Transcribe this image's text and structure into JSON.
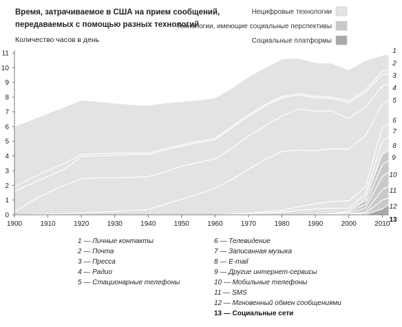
{
  "chart_data": {
    "type": "area",
    "title_lines": [
      "Время, затрачиваемое в США на прием сообщений,",
      "передаваемых с помощью разных технологий"
    ],
    "ylabel": "Количество часов в день",
    "xlabel": "",
    "xlim": [
      1900,
      2012
    ],
    "ylim": [
      0,
      11
    ],
    "x_ticks": [
      "1900",
      "1910",
      "1920",
      "1930",
      "1940",
      "1950",
      "1960",
      "1970",
      "1980",
      "1990",
      "2000",
      "2010"
    ],
    "y_ticks": [
      "0",
      "1",
      "2",
      "3",
      "4",
      "5",
      "6",
      "7",
      "8",
      "9",
      "10",
      "11"
    ],
    "groups": [
      {
        "name": "Нецифровые технологии",
        "color": "#e3e3e3"
      },
      {
        "name": "Технологии, имеющие социальные перспективы",
        "color": "#c9c9c9"
      },
      {
        "name": "Социальные платформы",
        "color": "#a9a9a9"
      }
    ],
    "x": [
      1900,
      1905,
      1910,
      1915,
      1920,
      1925,
      1930,
      1935,
      1940,
      1945,
      1950,
      1955,
      1960,
      1965,
      1970,
      1975,
      1980,
      1985,
      1990,
      1995,
      2000,
      2005,
      2010,
      2012
    ],
    "series": [
      {
        "id": "1",
        "group": 0,
        "label": "1",
        "top": [
          6.0,
          6.45,
          6.9,
          7.35,
          7.8,
          7.7,
          7.6,
          7.5,
          7.45,
          7.6,
          7.7,
          7.8,
          7.95,
          8.6,
          9.4,
          10.0,
          10.6,
          10.65,
          10.35,
          10.3,
          9.85,
          10.5,
          10.85,
          10.9
        ]
      },
      {
        "id": "2",
        "group": 0,
        "label": "2",
        "top": [
          1.9,
          2.5,
          3.0,
          3.5,
          4.1,
          4.15,
          4.2,
          4.2,
          4.2,
          4.5,
          4.75,
          5.0,
          5.2,
          6.0,
          6.8,
          7.5,
          8.05,
          8.25,
          8.05,
          8.0,
          7.75,
          8.5,
          9.75,
          9.85
        ]
      },
      {
        "id": "3",
        "group": 0,
        "label": "3",
        "top": [
          1.6,
          2.1,
          2.6,
          3.1,
          3.95,
          4.0,
          4.05,
          4.1,
          4.1,
          4.4,
          4.65,
          4.9,
          5.1,
          5.9,
          6.7,
          7.4,
          7.95,
          8.15,
          7.95,
          7.9,
          7.6,
          8.35,
          9.5,
          9.6
        ]
      },
      {
        "id": "4",
        "group": 0,
        "label": "4",
        "top": [
          0.2,
          0.9,
          1.5,
          2.0,
          2.45,
          2.5,
          2.5,
          2.55,
          2.6,
          2.9,
          3.3,
          3.55,
          3.8,
          4.5,
          5.35,
          6.05,
          6.7,
          7.2,
          7.05,
          7.05,
          6.55,
          7.3,
          8.75,
          8.9
        ]
      },
      {
        "id": "5",
        "group": 0,
        "label": "5",
        "top": [
          0.0,
          0.02,
          0.05,
          0.08,
          0.12,
          0.18,
          0.22,
          0.3,
          0.35,
          0.7,
          1.05,
          1.4,
          1.8,
          2.4,
          3.1,
          3.75,
          4.3,
          4.4,
          4.35,
          4.5,
          4.45,
          5.4,
          7.5,
          7.8
        ]
      },
      {
        "id": "6",
        "group": 0,
        "label": "6",
        "top": [
          0,
          0,
          0,
          0,
          0,
          0,
          0,
          0,
          0,
          0,
          0,
          0,
          0,
          0.05,
          0.1,
          0.2,
          0.3,
          0.55,
          0.75,
          0.9,
          0.95,
          1.9,
          5.9,
          6.2
        ]
      },
      {
        "id": "7",
        "group": 0,
        "label": "7",
        "top": [
          0,
          0,
          0,
          0,
          0,
          0,
          0,
          0,
          0,
          0,
          0,
          0,
          0,
          0.02,
          0.05,
          0.1,
          0.18,
          0.3,
          0.4,
          0.45,
          0.45,
          1.4,
          5.0,
          5.3
        ]
      },
      {
        "id": "8",
        "group": 1,
        "label": "8",
        "top": [
          0,
          0,
          0,
          0,
          0,
          0,
          0,
          0,
          0,
          0,
          0,
          0,
          0,
          0,
          0,
          0,
          0,
          0,
          0.02,
          0.08,
          0.25,
          1.0,
          4.1,
          4.4
        ]
      },
      {
        "id": "9",
        "group": 1,
        "label": "9",
        "top": [
          0,
          0,
          0,
          0,
          0,
          0,
          0,
          0,
          0,
          0,
          0,
          0,
          0,
          0,
          0,
          0,
          0,
          0,
          0,
          0.05,
          0.18,
          0.7,
          3.4,
          3.7
        ]
      },
      {
        "id": "10",
        "group": 1,
        "label": "10",
        "top": [
          0,
          0,
          0,
          0,
          0,
          0,
          0,
          0,
          0,
          0,
          0,
          0,
          0,
          0,
          0,
          0,
          0,
          0,
          0,
          0.02,
          0.08,
          0.45,
          2.6,
          2.9
        ]
      },
      {
        "id": "11",
        "group": 1,
        "label": "11",
        "top": [
          0,
          0,
          0,
          0,
          0,
          0,
          0,
          0,
          0,
          0,
          0,
          0,
          0,
          0,
          0,
          0,
          0,
          0,
          0,
          0,
          0.02,
          0.2,
          1.7,
          1.95
        ]
      },
      {
        "id": "12",
        "group": 1,
        "label": "12",
        "top": [
          0,
          0,
          0,
          0,
          0,
          0,
          0,
          0,
          0,
          0,
          0,
          0,
          0,
          0,
          0,
          0,
          0,
          0,
          0,
          0,
          0.01,
          0.1,
          1.0,
          1.15
        ]
      },
      {
        "id": "13",
        "group": 2,
        "label": "13",
        "top": [
          0,
          0,
          0,
          0,
          0,
          0,
          0,
          0,
          0,
          0,
          0,
          0,
          0,
          0,
          0,
          0,
          0,
          0,
          0,
          0,
          0,
          0.02,
          0.4,
          0.7
        ]
      }
    ],
    "footnotes_left": [
      "1 — Личные контакты",
      "2 — Почта",
      "3 — Пресса",
      "4 — Радио",
      "5 — Стационарные телефоны"
    ],
    "footnotes_right": [
      "6 — Телевидение",
      "7 — Записанная музыка",
      "8 — E-mail",
      "9 — Другие интернет-сервисы",
      "10 — Мобильные телефоны",
      "11 — SMS",
      "12 — Мгновенный обмен сообщениями",
      "13 — Социальные сети"
    ]
  }
}
